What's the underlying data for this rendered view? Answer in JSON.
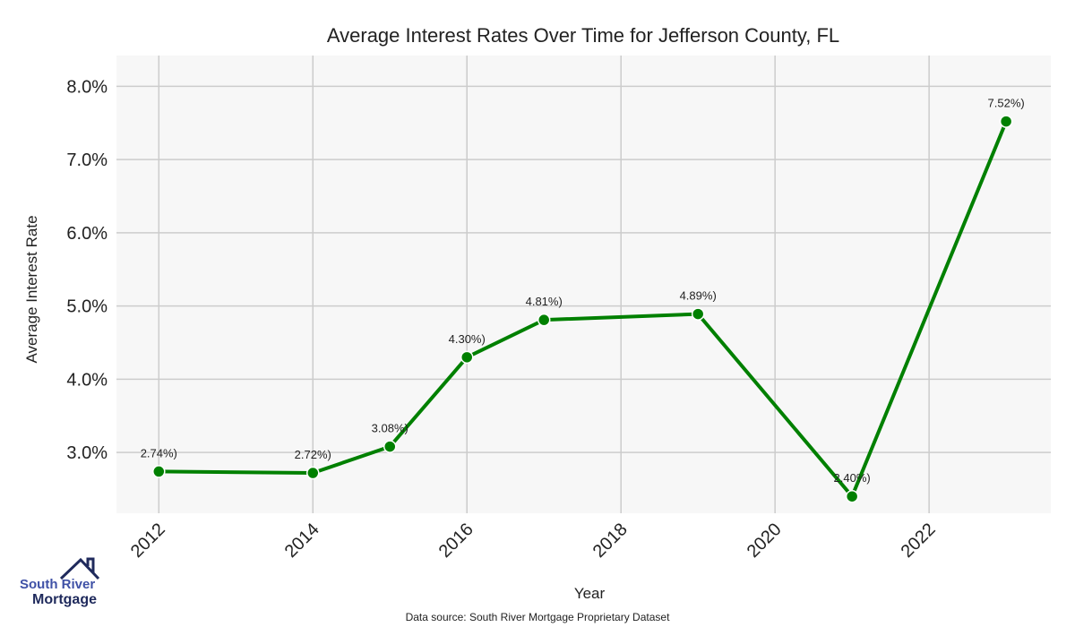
{
  "chart_data": {
    "type": "line",
    "title": "Average Interest Rates Over Time for Jefferson County, FL",
    "xlabel": "Year",
    "ylabel": "Average Interest Rate",
    "x": [
      2012,
      2014,
      2015,
      2016,
      2017,
      2019,
      2021,
      2023
    ],
    "values": [
      2.74,
      2.72,
      3.08,
      4.3,
      4.81,
      4.89,
      2.4,
      7.52
    ],
    "data_labels": [
      "2.74%)",
      "2.72%)",
      "3.08%)",
      "4.30%)",
      "4.81%)",
      "4.89%)",
      "2.40%)",
      "7.52%)"
    ],
    "xlim": [
      2011.45,
      2023.58
    ],
    "ylim": [
      2.17,
      8.42
    ],
    "x_ticks": [
      "2012",
      "2014",
      "2016",
      "2018",
      "2020",
      "2022"
    ],
    "y_ticks": [
      "3.0%",
      "4.0%",
      "5.0%",
      "6.0%",
      "7.0%",
      "8.0%"
    ],
    "grid": true,
    "line_color": "#008000",
    "plot_background": "#f7f7f7",
    "grid_color": "#cccccc"
  },
  "footer": {
    "source": "Data source: South River Mortgage Proprietary Dataset"
  },
  "logo": {
    "line1": "South River",
    "line2": "Mortgage"
  }
}
